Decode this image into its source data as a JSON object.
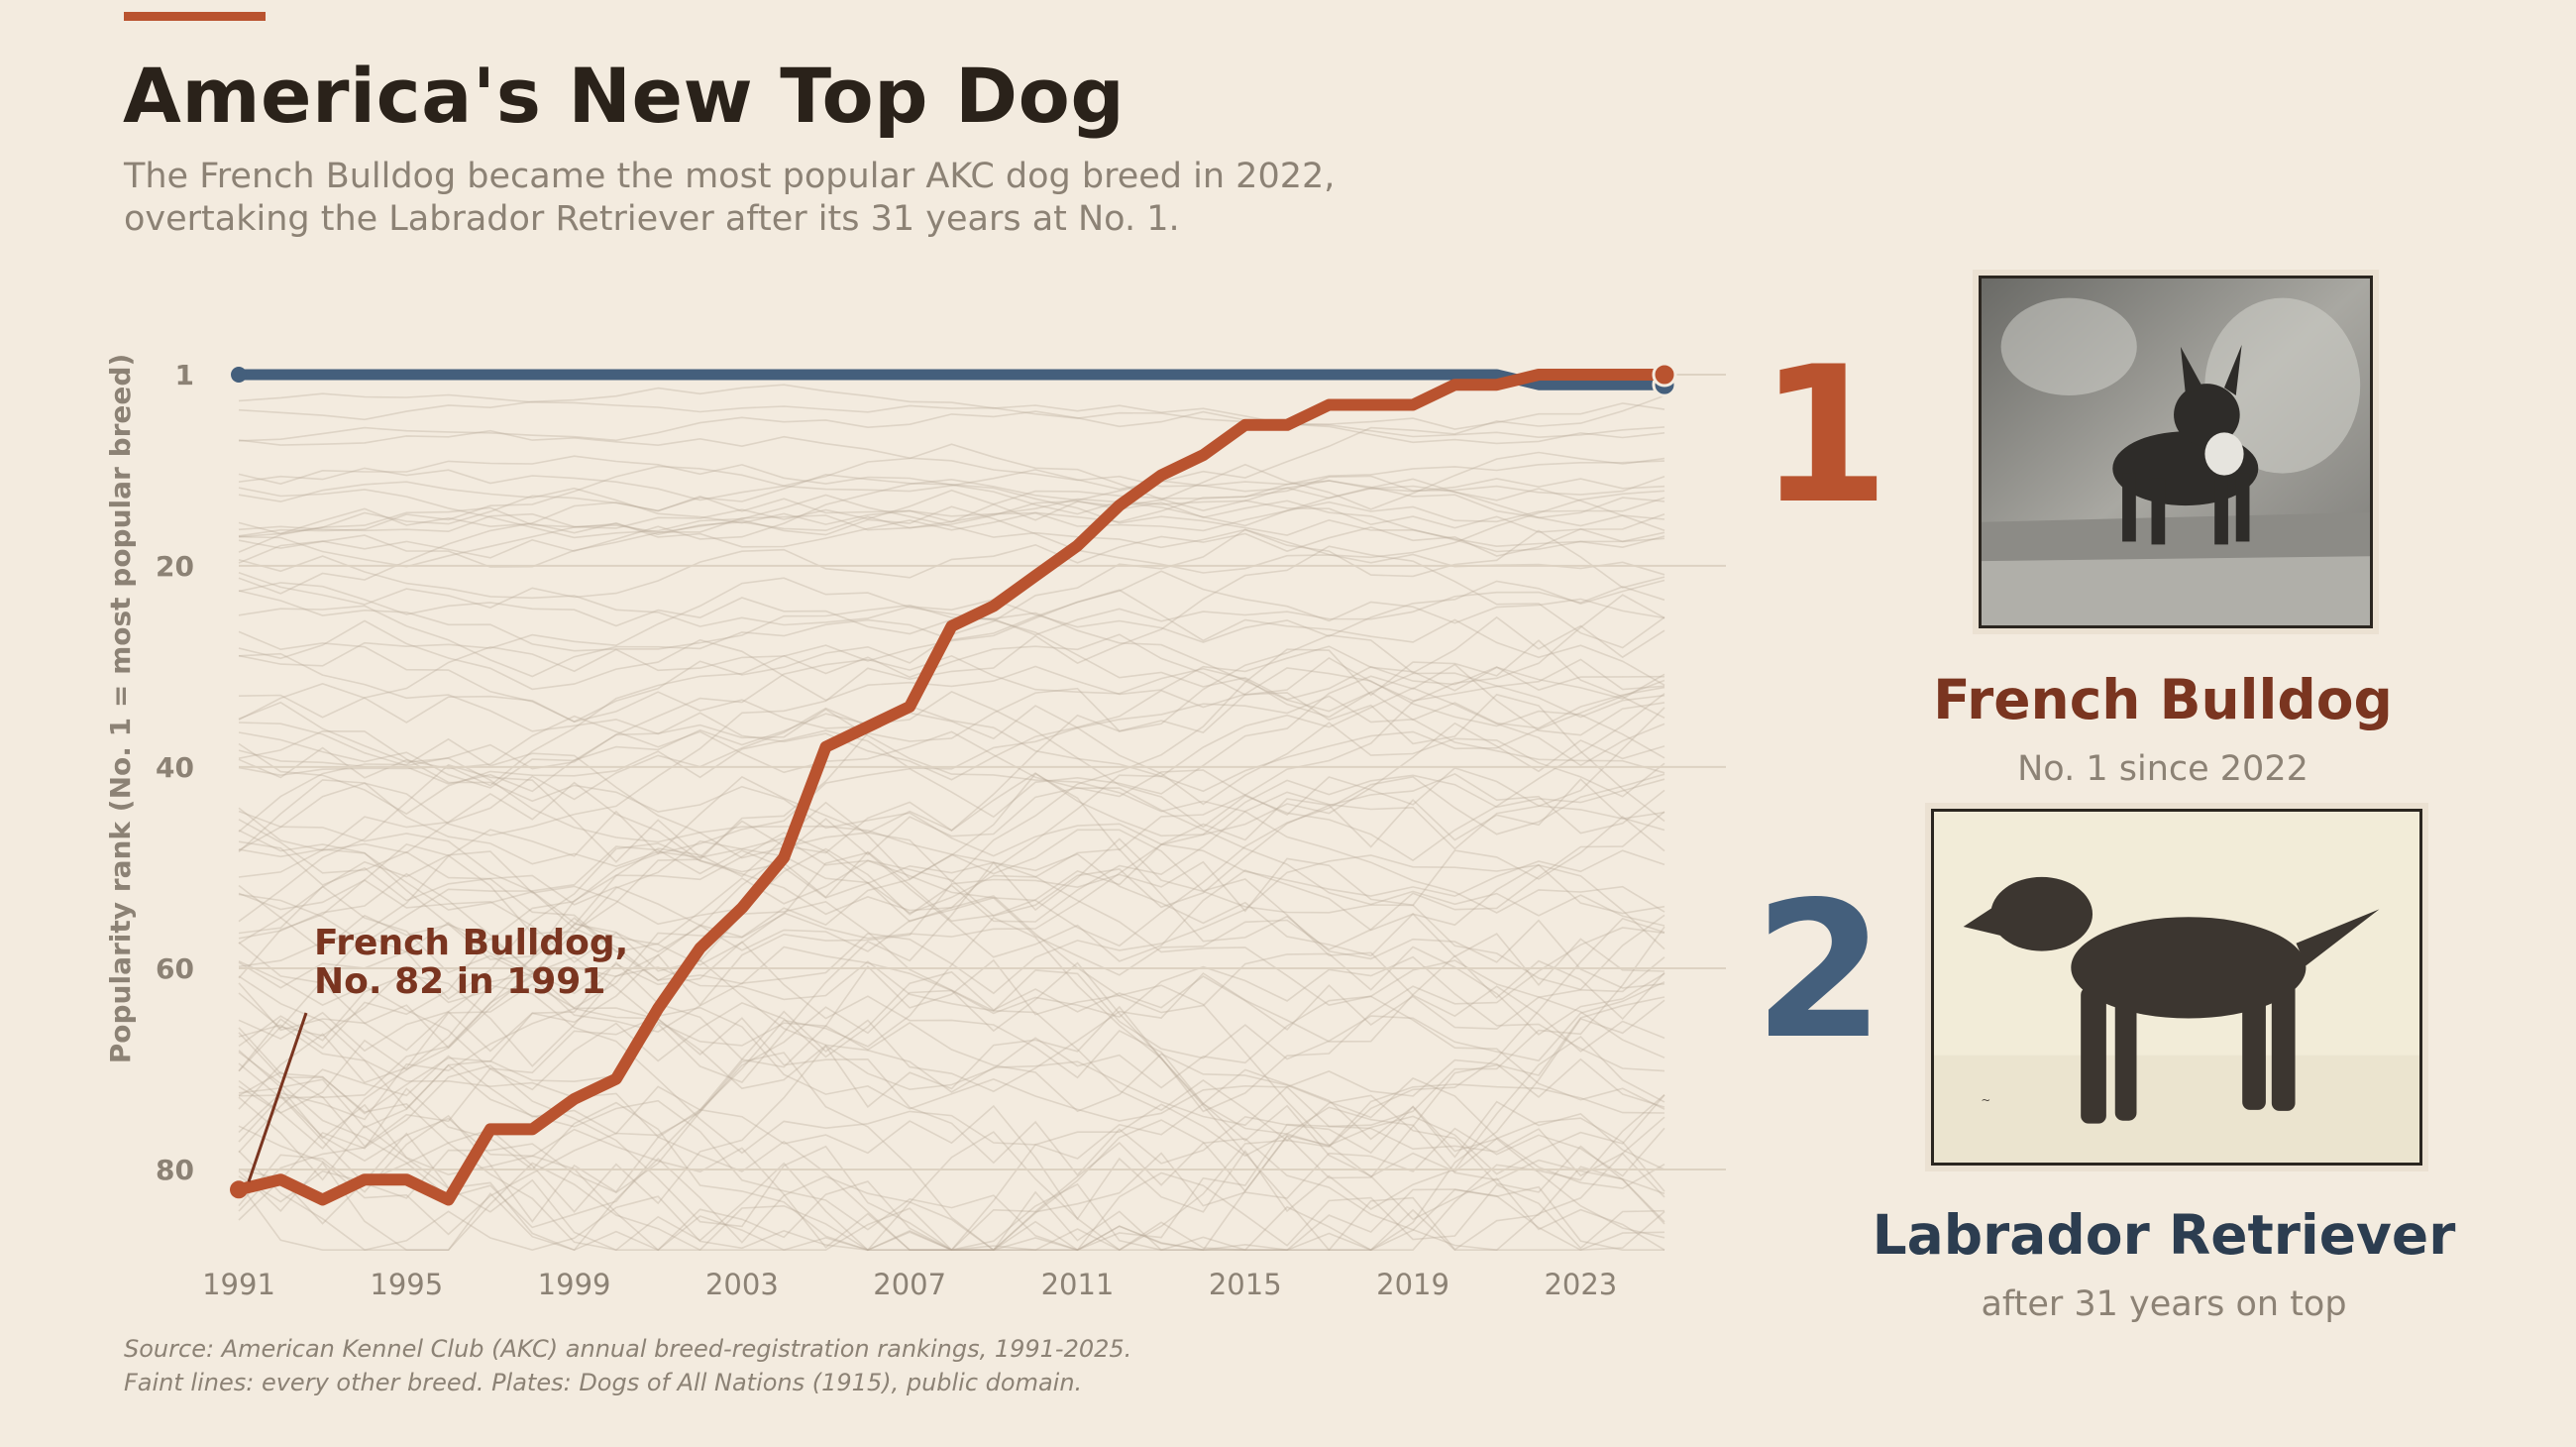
{
  "header": {
    "title": "America's New Top Dog",
    "subtitle_line1": "The French Bulldog became the most popular AKC dog breed in 2022,",
    "subtitle_line2": "overtaking the Labrador Retriever after its 31 years at No. 1."
  },
  "colors": {
    "accent": "#b9532f",
    "bulldog": "#b9532f",
    "bulldog_dark": "#7a3520",
    "labrador": "#445f7c",
    "labrador_dark": "#2c3d50",
    "background": "#f3ebdf",
    "muted_text": "#8c8275"
  },
  "chart_data": {
    "type": "line",
    "ylabel": "Popularity rank  (No. 1 = most popular breed)",
    "y_axis_inverted": true,
    "ylim": [
      1,
      88
    ],
    "xlim": [
      1991,
      2025
    ],
    "x_ticks": [
      1991,
      1995,
      1999,
      2003,
      2007,
      2011,
      2015,
      2019,
      2023
    ],
    "y_ticks": [
      1,
      20,
      40,
      60,
      80
    ],
    "grid": "horizontal",
    "x": [
      1991,
      1992,
      1993,
      1994,
      1995,
      1996,
      1997,
      1998,
      1999,
      2000,
      2001,
      2002,
      2003,
      2004,
      2005,
      2006,
      2007,
      2008,
      2009,
      2010,
      2011,
      2012,
      2013,
      2014,
      2015,
      2016,
      2017,
      2018,
      2019,
      2020,
      2021,
      2022,
      2023,
      2024,
      2025
    ],
    "series": [
      {
        "name": "French Bulldog",
        "color": "#b9532f",
        "values": [
          82,
          81,
          83,
          81,
          81,
          83,
          76,
          76,
          73,
          71,
          64,
          58,
          54,
          49,
          38,
          36,
          34,
          26,
          24,
          21,
          18,
          14,
          11,
          9,
          6,
          6,
          4,
          4,
          4,
          2,
          2,
          1,
          1,
          1,
          1
        ]
      },
      {
        "name": "Labrador Retriever",
        "color": "#445f7c",
        "values": [
          1,
          1,
          1,
          1,
          1,
          1,
          1,
          1,
          1,
          1,
          1,
          1,
          1,
          1,
          1,
          1,
          1,
          1,
          1,
          1,
          1,
          1,
          1,
          1,
          1,
          1,
          1,
          1,
          1,
          1,
          1,
          2,
          2,
          2,
          2
        ]
      }
    ],
    "annotation": {
      "line1": "French Bulldog,",
      "line2": "No. 82 in 1991",
      "x": 1991,
      "y": 82
    }
  },
  "legend_panel": {
    "first": {
      "rank": "1",
      "name": "French Bulldog",
      "note": "No. 1 since 2022"
    },
    "second": {
      "rank": "2",
      "name": "Labrador Retriever",
      "note": "after 31 years on top"
    }
  },
  "footer": {
    "line1": "Source: American Kennel Club (AKC) annual breed-registration rankings, 1991-2025.",
    "line2": "Faint lines: every other breed. Plates: Dogs of All Nations (1915), public domain."
  }
}
